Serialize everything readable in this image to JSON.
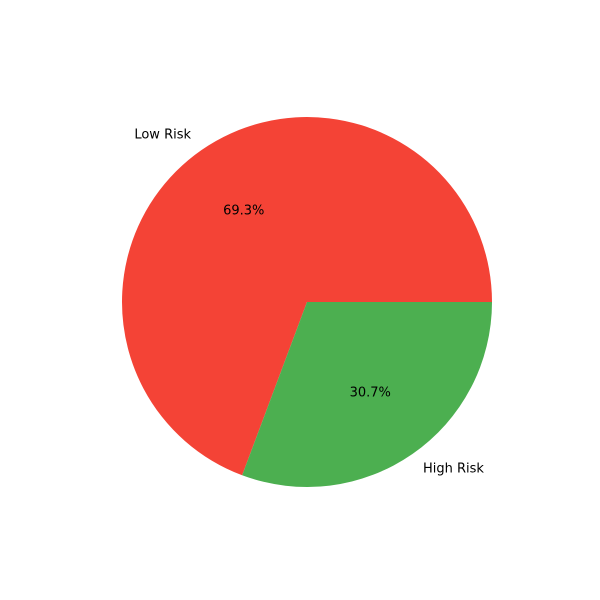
{
  "chart_data": {
    "type": "pie",
    "title": "",
    "start_angle_deg": 0,
    "direction": "counterclockwise",
    "slices": [
      {
        "label": "Low Risk",
        "value": 69.3,
        "pct_label": "69.3%",
        "color": "#f44336"
      },
      {
        "label": "High Risk",
        "value": 30.7,
        "pct_label": "30.7%",
        "color": "#4caf50"
      }
    ],
    "legend": "none"
  }
}
